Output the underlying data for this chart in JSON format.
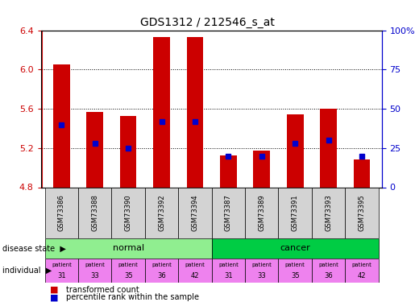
{
  "title": "GDS1312 / 212546_s_at",
  "samples": [
    "GSM73386",
    "GSM73388",
    "GSM73390",
    "GSM73392",
    "GSM73394",
    "GSM73387",
    "GSM73389",
    "GSM73391",
    "GSM73393",
    "GSM73395"
  ],
  "transformed_counts": [
    6.05,
    5.57,
    5.53,
    6.33,
    6.33,
    5.12,
    5.17,
    5.54,
    5.6,
    5.08
  ],
  "baseline": 4.8,
  "percentile_ranks": [
    40,
    28,
    25,
    42,
    42,
    20,
    20,
    28,
    30,
    20
  ],
  "ylim": [
    4.8,
    6.4
  ],
  "yticks": [
    4.8,
    5.2,
    5.6,
    6.0,
    6.4
  ],
  "right_yticks": [
    0,
    25,
    50,
    75,
    100
  ],
  "right_ytick_labels": [
    "0",
    "25",
    "50",
    "75",
    "100%"
  ],
  "bar_color": "#cc0000",
  "dot_color": "#0000cc",
  "disease_states": [
    "normal",
    "normal",
    "normal",
    "normal",
    "normal",
    "cancer",
    "cancer",
    "cancer",
    "cancer",
    "cancer"
  ],
  "individuals": [
    "31",
    "33",
    "35",
    "36",
    "42",
    "31",
    "33",
    "35",
    "36",
    "42"
  ],
  "normal_color": "#90ee90",
  "cancer_color": "#00cc44",
  "individual_color_normal": "#ee82ee",
  "individual_color_cancer": "#ee82ee",
  "bg_color": "#ffffff",
  "tick_color_left": "#cc0000",
  "tick_color_right": "#0000cc",
  "grid_color": "#000000",
  "sample_bg": "#d3d3d3"
}
